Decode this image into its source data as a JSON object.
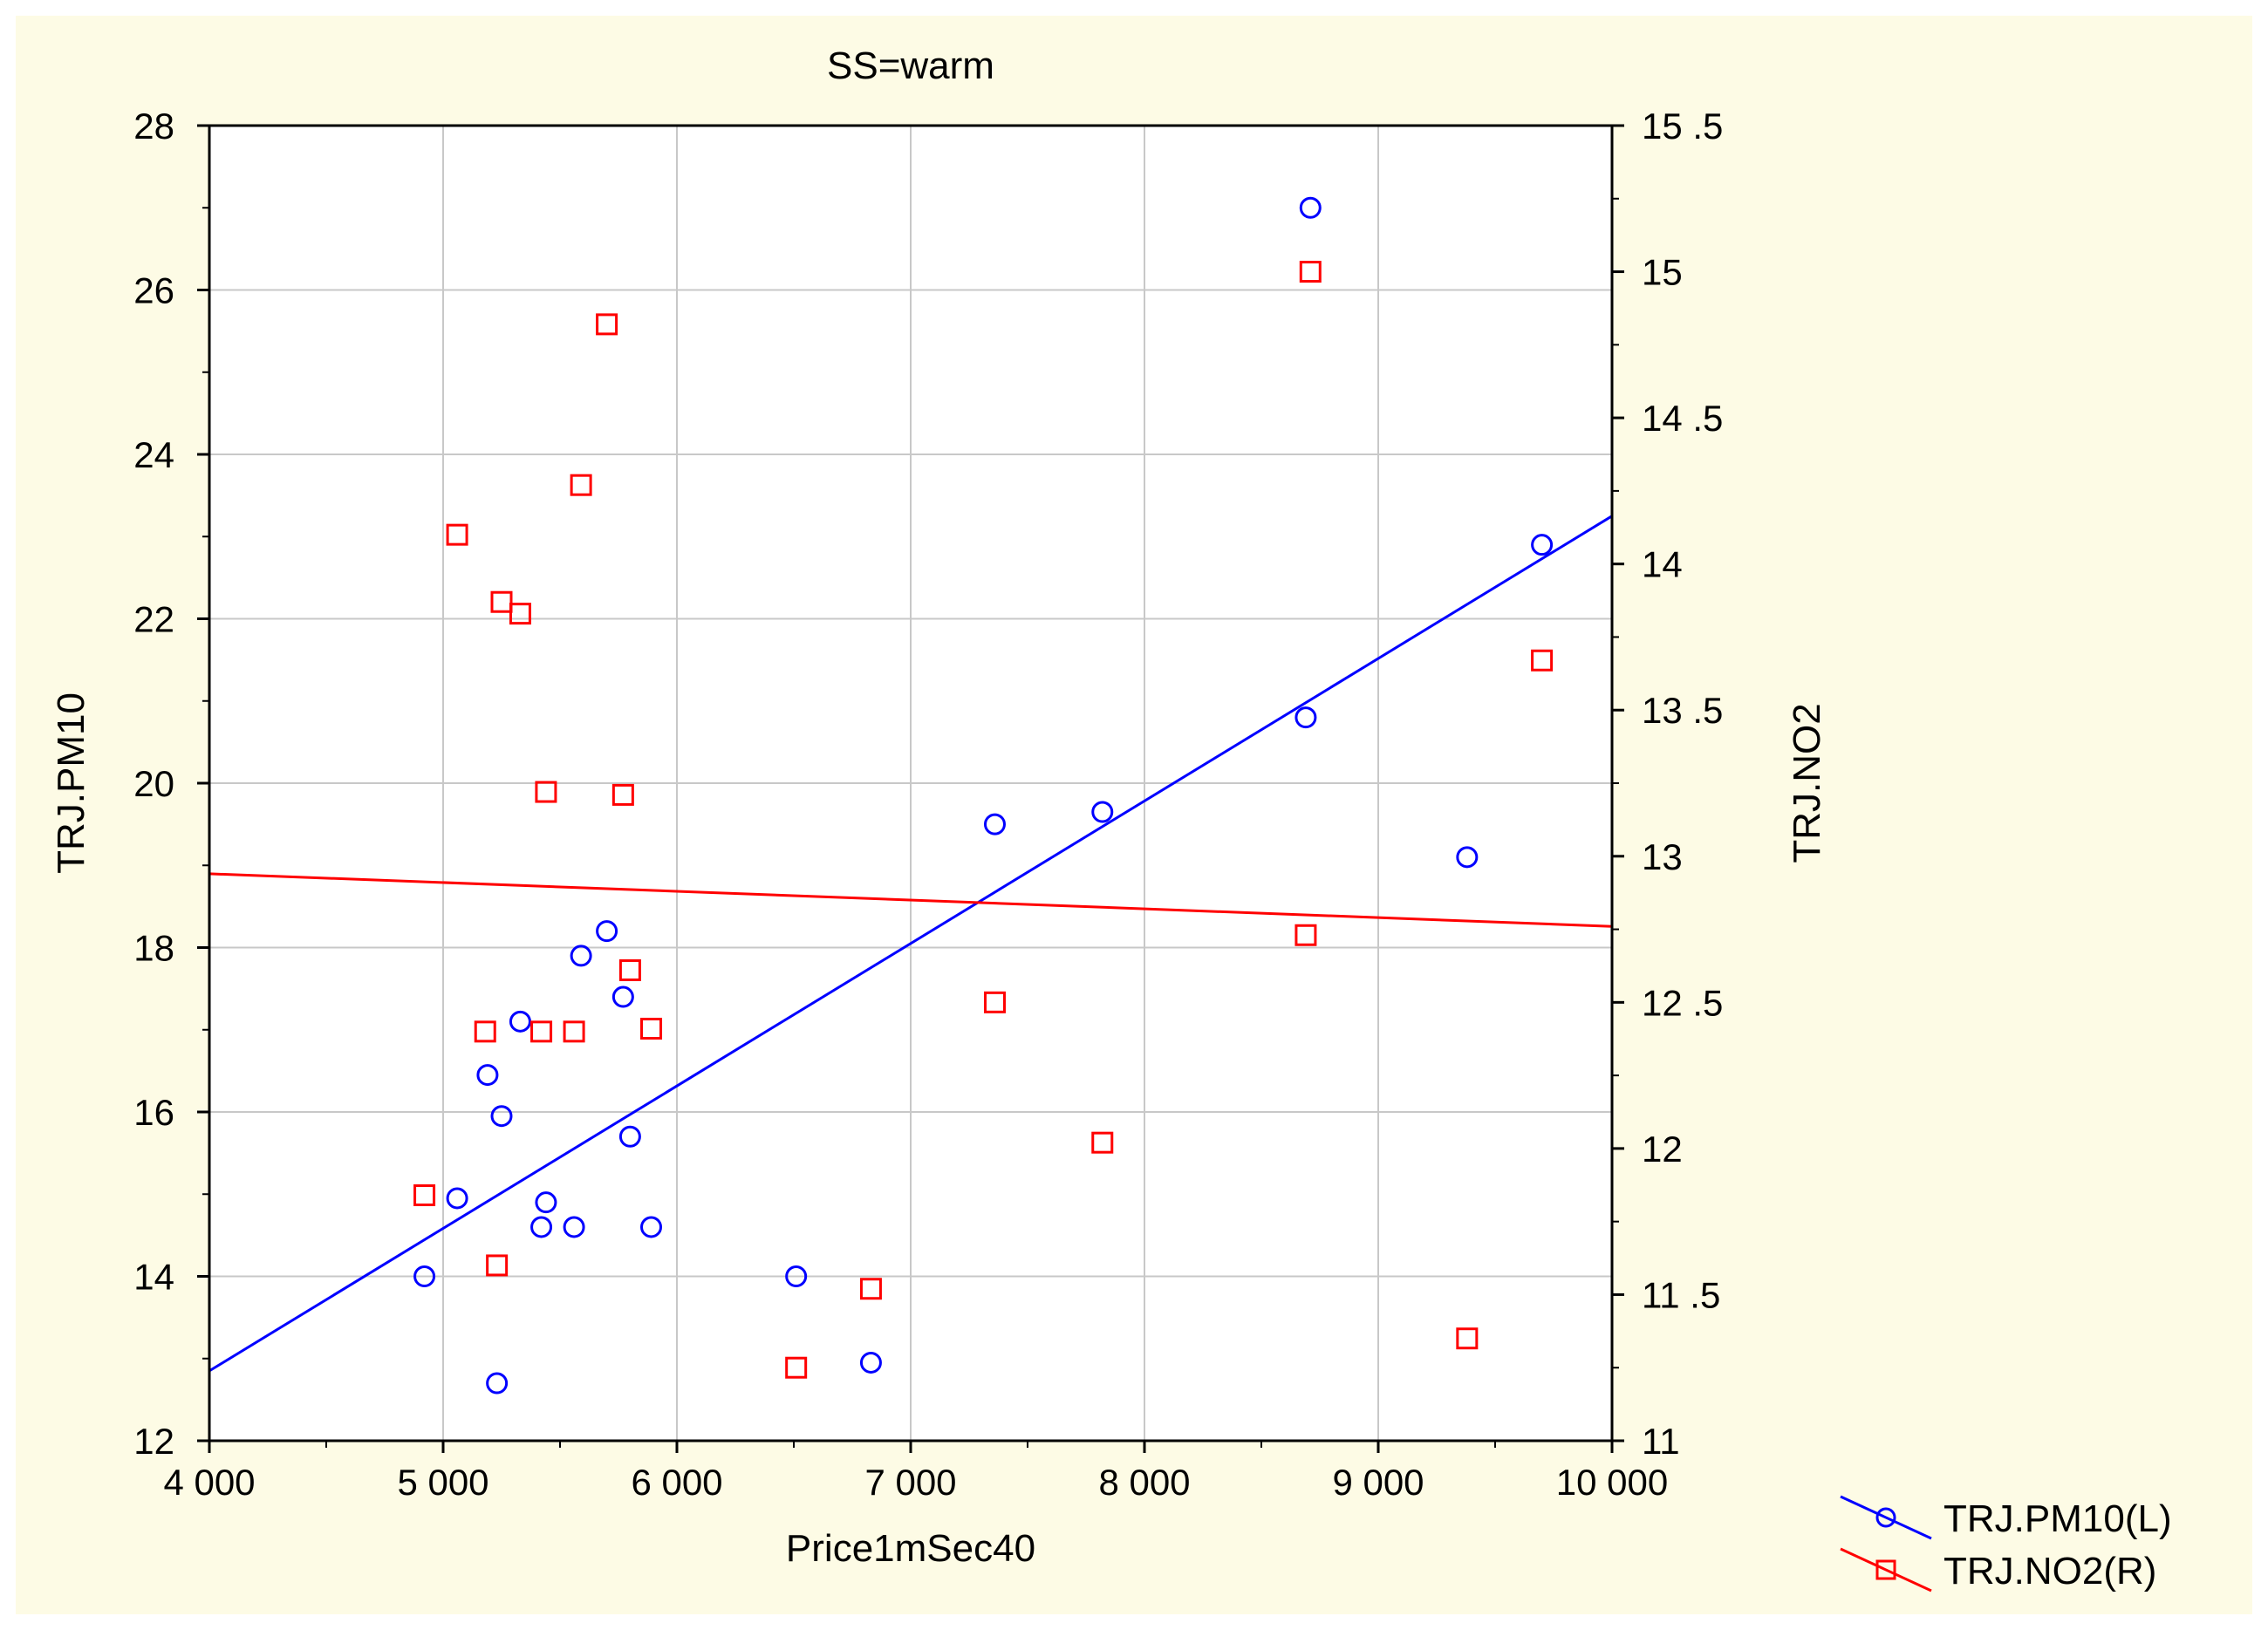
{
  "chart_data": {
    "type": "scatter",
    "title": "SS=warm",
    "xlabel": "Price1mSec40",
    "ylabel_left": "TRJ.PM10",
    "ylabel_right": "TRJ.NO2",
    "xlim": [
      4000,
      10000
    ],
    "ylim_left": [
      12,
      28
    ],
    "ylim_right": [
      11,
      15.5
    ],
    "x_ticks": [
      4000,
      5000,
      6000,
      7000,
      8000,
      9000,
      10000
    ],
    "x_tick_labels": [
      "4 000",
      "5 000",
      "6 000",
      "7 000",
      "8 000",
      "9 000",
      "10 000"
    ],
    "y_left_ticks": [
      12,
      14,
      16,
      18,
      20,
      22,
      24,
      26,
      28
    ],
    "y_left_tick_labels": [
      "12",
      "14",
      "16",
      "18",
      "20",
      "22",
      "24",
      "26",
      "28"
    ],
    "y_right_ticks": [
      11,
      11.5,
      12,
      12.5,
      13,
      13.5,
      14,
      14.5,
      15,
      15.5
    ],
    "y_right_tick_labels": [
      "11",
      "11 .5",
      "12",
      "12 .5",
      "13",
      "13 .5",
      "14",
      "14 .5",
      "15",
      "15 .5"
    ],
    "grid": true,
    "legend_position": "bottom-right outside",
    "series": [
      {
        "name": "TRJ.PM10(L)",
        "axis": "left",
        "color": "#0000ff",
        "marker": "circle",
        "points": [
          [
            4920,
            14.0
          ],
          [
            5060,
            14.95
          ],
          [
            5190,
            16.45
          ],
          [
            5230,
            12.7
          ],
          [
            5250,
            15.95
          ],
          [
            5330,
            17.1
          ],
          [
            5420,
            14.6
          ],
          [
            5440,
            14.9
          ],
          [
            5560,
            14.6
          ],
          [
            5590,
            17.9
          ],
          [
            5700,
            18.2
          ],
          [
            5770,
            17.4
          ],
          [
            5800,
            15.7
          ],
          [
            5890,
            14.6
          ],
          [
            6510,
            14.0
          ],
          [
            6830,
            12.95
          ],
          [
            7360,
            19.5
          ],
          [
            7820,
            19.65
          ],
          [
            8690,
            20.8
          ],
          [
            8710,
            27.0
          ],
          [
            9380,
            19.1
          ],
          [
            9700,
            22.9
          ]
        ],
        "trend": [
          [
            4000,
            12.85
          ],
          [
            10000,
            23.25
          ]
        ]
      },
      {
        "name": "TRJ.NO2(R)",
        "axis": "right",
        "color": "#ff0000",
        "marker": "square",
        "points": [
          [
            4920,
            11.84
          ],
          [
            5060,
            14.1
          ],
          [
            5180,
            12.4
          ],
          [
            5230,
            11.6
          ],
          [
            5250,
            13.87
          ],
          [
            5330,
            13.83
          ],
          [
            5420,
            12.4
          ],
          [
            5440,
            13.22
          ],
          [
            5560,
            12.4
          ],
          [
            5590,
            14.27
          ],
          [
            5700,
            14.82
          ],
          [
            5770,
            13.21
          ],
          [
            5800,
            12.61
          ],
          [
            5890,
            12.41
          ],
          [
            6510,
            11.25
          ],
          [
            6830,
            11.52
          ],
          [
            7360,
            12.5
          ],
          [
            7820,
            12.02
          ],
          [
            8690,
            12.73
          ],
          [
            8710,
            15.0
          ],
          [
            9380,
            11.35
          ],
          [
            9700,
            13.67
          ]
        ],
        "trend": [
          [
            4000,
            12.94
          ],
          [
            10000,
            12.76
          ]
        ]
      }
    ]
  }
}
